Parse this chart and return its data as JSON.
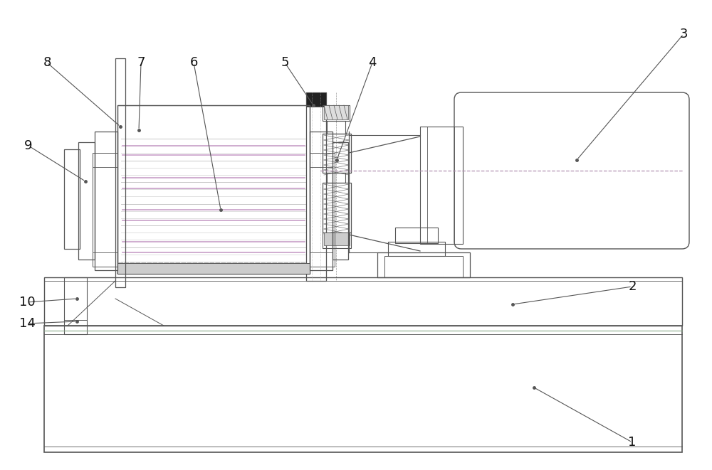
{
  "bg_color": "#ffffff",
  "lc": "#555555",
  "lw": 1.0,
  "tlw": 0.6,
  "hatch_lc": "#777777",
  "dashed_color": "#b090b0",
  "green_line": "#88aa88",
  "purple_line": "#c090c0"
}
